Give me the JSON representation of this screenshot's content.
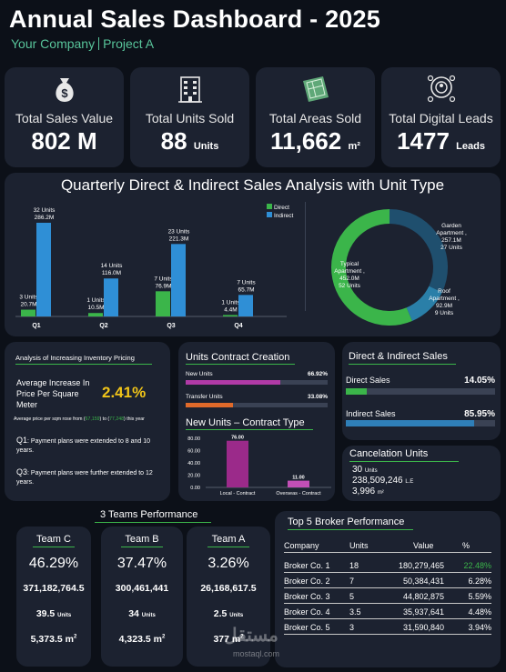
{
  "header": {
    "title": "Annual Sales Dashboard - 2025",
    "company": "Your Company",
    "project": "Project A"
  },
  "kpis": [
    {
      "label": "Total Sales Value",
      "value": "802 M",
      "unit": "",
      "icon": "money-bag-icon"
    },
    {
      "label": "Total Units Sold",
      "value": "88",
      "unit": "Units",
      "icon": "building-icon"
    },
    {
      "label": "Total Areas Sold",
      "value": "11,662",
      "unit": "m²",
      "icon": "blueprint-icon"
    },
    {
      "label": "Total Digital Leads",
      "value": "1477",
      "unit": "Leads",
      "icon": "leads-icon"
    }
  ],
  "quarterly": {
    "title": "Quarterly Direct & Indirect Sales Analysis with Unit Type",
    "legend": [
      "Direct",
      "Indirect"
    ]
  },
  "chart_data": [
    {
      "type": "bar",
      "title": "Quarterly Direct & Indirect Sales Analysis with Unit Type",
      "categories": [
        "Q1",
        "Q2",
        "Q3",
        "Q4"
      ],
      "series": [
        {
          "name": "Direct",
          "values": [
            20.7,
            10.5,
            76.9,
            4.4
          ],
          "labels": [
            "20.7M",
            "10.5M",
            "76.9M",
            "4.4M"
          ],
          "units": [
            "3 Units",
            "1 Units",
            "7 Units",
            "1 Units"
          ]
        },
        {
          "name": "Indirect",
          "values": [
            286.2,
            116.0,
            221.3,
            65.7
          ],
          "labels": [
            "286.2M",
            "116.0M",
            "221.3M",
            "65.7M"
          ],
          "units": [
            "32 Units",
            "14 Units",
            "23 Units",
            "7 Units"
          ]
        }
      ],
      "ylim": [
        0,
        300
      ],
      "colors": [
        "#3bb54a",
        "#2f8fd6"
      ]
    },
    {
      "type": "pie",
      "slices": [
        {
          "label": "Garden Apartment ,",
          "value": 257.1,
          "value_label": "257.1M",
          "units": "27 Units",
          "color": "#1f4f6e"
        },
        {
          "label": "Roof Apartment ,",
          "value": 92.9,
          "value_label": "92.9M",
          "units": "9 Units",
          "color": "#2a7fa8"
        },
        {
          "label": "Typical Apartment ,",
          "value": 452.0,
          "value_label": "452.0M",
          "units": "52 Units",
          "color": "#3bb54a"
        }
      ]
    },
    {
      "type": "bar",
      "title": "New Units – Contract Type",
      "categories": [
        "Local - Contract",
        "Overseas - Contract"
      ],
      "values": [
        76.0,
        11.0
      ],
      "labels": [
        "76.00",
        "11.00"
      ],
      "yticks": [
        "80.00",
        "60.00",
        "40.00",
        "20.00",
        "0.00"
      ],
      "ylim": [
        0,
        80
      ],
      "colors": [
        "#9b2a8a",
        "#c24fb6"
      ]
    }
  ],
  "inventory": {
    "title": "Analysis of Increasing Inventory Pricing",
    "label": "Average Increase In Price Per Square Meter",
    "value": "2.41%",
    "note_pre": "Average price per sqm rose from (",
    "note_from": "67,159",
    "note_mid": ") to (",
    "note_to": "77,248",
    "note_post": ") this year",
    "q1_tag": "Q1",
    "q1_text": ": Payment plans were extended to 8 and 10 years.",
    "q3_tag": "Q3",
    "q3_text": ": Payment plans were further extended to 12 years."
  },
  "contract_creation": {
    "title": "Units Contract Creation",
    "items": [
      {
        "label": "New Units",
        "pct": "66.92%",
        "fraction": 0.6692,
        "color": "#b03aa6"
      },
      {
        "label": "Transfer Units",
        "pct": "33.08%",
        "fraction": 0.3308,
        "color": "#e06a2a"
      }
    ],
    "chart_title": "New Units – Contract Type"
  },
  "direct_indirect": {
    "title": "Direct & Indirect Sales",
    "items": [
      {
        "label": "Direct Sales",
        "pct": "14.05%",
        "fraction": 0.1405,
        "color": "#3bb54a"
      },
      {
        "label": "Indirect Sales",
        "pct": "85.95%",
        "fraction": 0.8595,
        "color": "#2f7fb8"
      }
    ]
  },
  "cancelation": {
    "title": "Cancelation Units",
    "units": "30",
    "units_label": "Units",
    "value": "238,509,246",
    "value_label": "L.E",
    "area": "3,996",
    "area_label": "m²"
  },
  "teams": {
    "title": "3 Teams Performance",
    "list": [
      {
        "name": "Team C",
        "pct": "46.29%",
        "sales": "371,182,764.5",
        "units": "39.5",
        "units_label": "Units",
        "area": "5,373.5 m",
        "sup": "2"
      },
      {
        "name": "Team B",
        "pct": "37.47%",
        "sales": "300,461,441",
        "units": "34",
        "units_label": "Units",
        "area": "4,323.5 m",
        "sup": "2"
      },
      {
        "name": "Team A",
        "pct": "3.26%",
        "sales": "26,168,617.5",
        "units": "2.5",
        "units_label": "Units",
        "area": "377 m",
        "sup": "2"
      }
    ]
  },
  "brokers": {
    "title": "Top 5 Broker Performance",
    "headers": [
      "Company",
      "Units",
      "Value",
      "%"
    ],
    "rows": [
      {
        "company": "Broker Co. 1",
        "units": "18",
        "value": "180,279,465",
        "pct": "22.48%",
        "highlight": true
      },
      {
        "company": "Broker Co. 2",
        "units": "7",
        "value": "50,384,431",
        "pct": "6.28%"
      },
      {
        "company": "Broker Co. 3",
        "units": "5",
        "value": "44,802,875",
        "pct": "5.59%"
      },
      {
        "company": "Broker Co. 4",
        "units": "3.5",
        "value": "35,937,641",
        "pct": "4.48%"
      },
      {
        "company": "Broker Co. 5",
        "units": "3",
        "value": "31,590,840",
        "pct": "3.94%"
      }
    ]
  },
  "watermark": {
    "text": "مستقل",
    "domain": "mostaql.com"
  }
}
